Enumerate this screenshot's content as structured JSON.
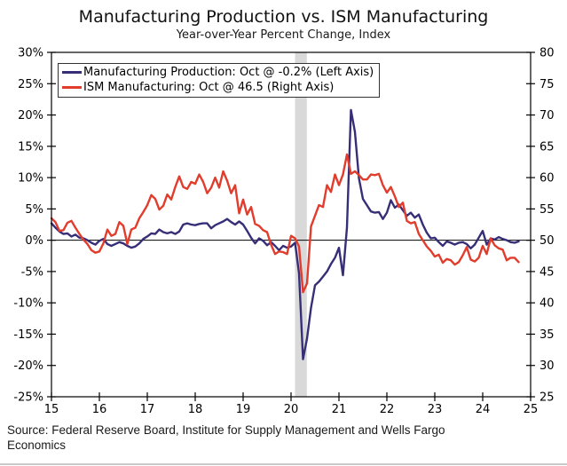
{
  "header": {
    "title": "Manufacturing Production vs. ISM Manufacturing",
    "subtitle": "Year-over-Year Percent Change, Index"
  },
  "legend": {
    "items": [
      {
        "label": "Manufacturing Production: Oct @ -0.2% (Left Axis)",
        "color": "#362f78"
      },
      {
        "label": "ISM Manufacturing: Oct @ 46.5 (Right Axis)",
        "color": "#e13c2c"
      }
    ]
  },
  "axes": {
    "left": {
      "tick_values": [
        30,
        25,
        20,
        15,
        10,
        5,
        0,
        -5,
        -10,
        -15,
        -20,
        -25
      ],
      "tick_labels": [
        "30%",
        "25%",
        "20%",
        "15%",
        "10%",
        "5%",
        "0%",
        "-5%",
        "-10%",
        "-15%",
        "-20%",
        "-25%"
      ]
    },
    "right": {
      "tick_values": [
        80,
        75,
        70,
        65,
        60,
        55,
        50,
        45,
        40,
        35,
        30,
        25
      ],
      "tick_labels": [
        "80",
        "75",
        "70",
        "65",
        "60",
        "55",
        "50",
        "45",
        "40",
        "35",
        "30",
        "25"
      ]
    },
    "x": {
      "tick_values": [
        2015,
        2016,
        2017,
        2018,
        2019,
        2020,
        2021,
        2022,
        2023,
        2024,
        2025
      ],
      "tick_labels": [
        "15",
        "16",
        "17",
        "18",
        "19",
        "20",
        "21",
        "22",
        "23",
        "24",
        "25"
      ]
    }
  },
  "source": {
    "text": "Source: Federal Reserve Board, Institute for Supply Management and Wells Fargo Economics"
  },
  "chart_data": {
    "type": "line",
    "title": "Manufacturing Production vs. ISM Manufacturing",
    "subtitle": "Year-over-Year Percent Change, Index",
    "xlim": [
      2015,
      2025
    ],
    "left_ylim": [
      -25,
      30
    ],
    "right_ylim": [
      25,
      80
    ],
    "grid": false,
    "zero_reference_line_left_value": 0,
    "recession_band_x": [
      2020.083,
      2020.33
    ],
    "band_color": "#d9d9d9",
    "x_start": 2015.0,
    "x_step_months": 1,
    "series": [
      {
        "name": "Manufacturing Production: Oct @ -0.2% (Left Axis)",
        "axis": "left",
        "color": "#362f78",
        "last_point_label": "Oct @ -0.2%",
        "values": [
          2.7,
          2.0,
          1.4,
          1.0,
          1.1,
          0.6,
          0.9,
          0.4,
          0.3,
          0.0,
          -0.4,
          -0.7,
          -0.1,
          0.2,
          -0.6,
          -0.9,
          -0.6,
          -0.3,
          -0.5,
          -0.9,
          -1.2,
          -1.0,
          -0.5,
          0.2,
          0.6,
          1.1,
          1.0,
          1.7,
          1.3,
          1.1,
          1.3,
          1.0,
          1.4,
          2.5,
          2.7,
          2.5,
          2.4,
          2.6,
          2.7,
          2.7,
          1.9,
          2.4,
          2.7,
          3.0,
          3.4,
          2.9,
          2.5,
          3.0,
          2.5,
          1.5,
          0.4,
          -0.5,
          0.3,
          -0.1,
          -0.8,
          -0.3,
          -0.9,
          -1.6,
          -0.9,
          -1.2,
          -1.0,
          -0.4,
          -5.3,
          -19.0,
          -15.7,
          -10.8,
          -7.2,
          -6.6,
          -5.8,
          -5.0,
          -3.8,
          -2.8,
          -1.2,
          -5.6,
          2.0,
          20.8,
          17.3,
          9.9,
          6.6,
          5.6,
          4.6,
          4.4,
          4.5,
          3.4,
          4.4,
          6.4,
          5.2,
          5.7,
          4.8,
          3.9,
          4.4,
          3.6,
          4.1,
          2.5,
          1.2,
          0.3,
          0.4,
          -0.3,
          -0.9,
          -0.2,
          -0.4,
          -0.7,
          -0.4,
          -0.3,
          -0.6,
          -1.3,
          -0.7,
          0.4,
          1.5,
          -0.7,
          0.3,
          0.1,
          0.5,
          0.2,
          0.0,
          -0.3,
          -0.4,
          -0.2
        ]
      },
      {
        "name": "ISM Manufacturing: Oct @ 46.5 (Right Axis)",
        "axis": "right",
        "color": "#e13c2c",
        "last_point_label": "Oct @ 46.5",
        "values": [
          53.5,
          52.9,
          51.5,
          51.6,
          52.8,
          53.1,
          52.0,
          51.0,
          50.1,
          49.4,
          48.4,
          48.0,
          48.2,
          49.5,
          51.7,
          50.7,
          51.0,
          52.9,
          52.3,
          49.4,
          51.7,
          52.0,
          53.5,
          54.5,
          55.6,
          57.2,
          56.6,
          54.9,
          55.5,
          57.3,
          56.5,
          58.5,
          60.2,
          58.5,
          58.2,
          59.3,
          59.0,
          60.5,
          59.3,
          57.5,
          58.4,
          60.0,
          58.4,
          61.0,
          59.5,
          57.5,
          58.8,
          54.3,
          56.5,
          54.1,
          55.3,
          52.6,
          52.3,
          51.6,
          51.3,
          49.3,
          47.8,
          48.2,
          48.1,
          47.8,
          50.7,
          50.3,
          49.0,
          41.7,
          43.1,
          52.2,
          53.9,
          55.6,
          55.3,
          58.8,
          57.7,
          60.5,
          58.8,
          60.5,
          63.7,
          60.6,
          61.0,
          60.4,
          59.7,
          59.7,
          60.5,
          60.4,
          60.6,
          58.8,
          57.6,
          58.5,
          57.0,
          55.3,
          56.0,
          53.1,
          52.7,
          52.9,
          51.0,
          50.0,
          49.0,
          48.3,
          47.4,
          47.7,
          46.4,
          47.0,
          46.8,
          46.1,
          46.5,
          47.6,
          48.9,
          46.9,
          46.6,
          47.2,
          49.1,
          47.8,
          50.3,
          49.2,
          48.7,
          48.5,
          46.8,
          47.2,
          47.2,
          46.5
        ]
      }
    ]
  }
}
